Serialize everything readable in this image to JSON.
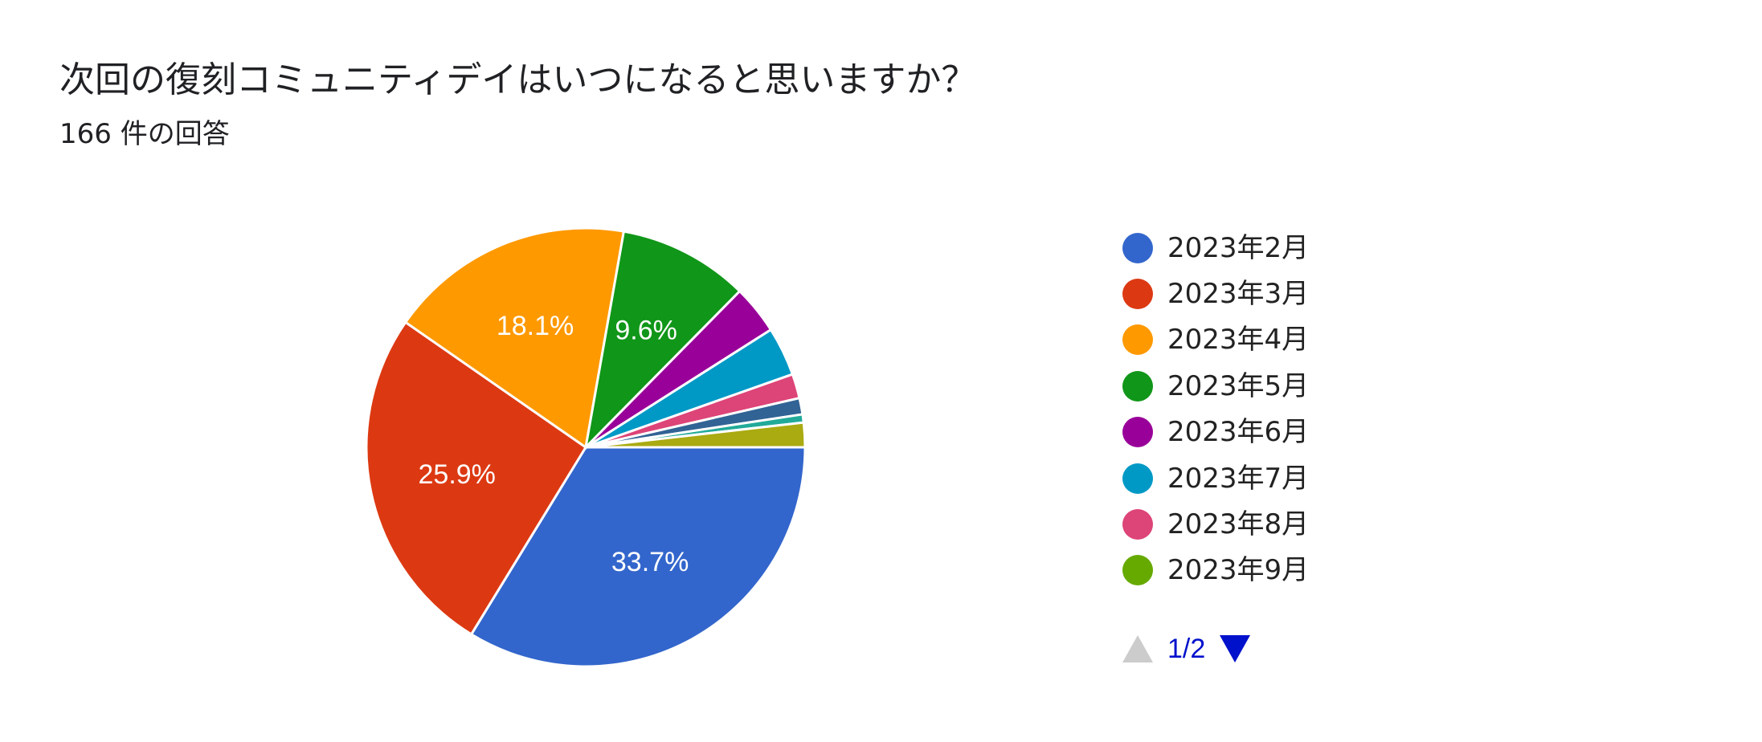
{
  "header": {
    "title": "次回の復刻コミュニティデイはいつになると思いますか？",
    "response_count": "166 件の回答"
  },
  "chart_data": {
    "type": "pie",
    "title": "次回の復刻コミュニティデイはいつになると思いますか？",
    "total_responses": 166,
    "start_angle_deg": 90,
    "direction": "clockwise",
    "slices": [
      {
        "label": "2023年2月",
        "value": 33.7,
        "display": "33.7%",
        "color": "#3366cc"
      },
      {
        "label": "2023年3月",
        "value": 25.9,
        "display": "25.9%",
        "color": "#dc3912"
      },
      {
        "label": "2023年4月",
        "value": 18.1,
        "display": "18.1%",
        "color": "#ff9900"
      },
      {
        "label": "2023年5月",
        "value": 9.6,
        "display": "9.6%",
        "color": "#109618"
      },
      {
        "label": "2023年6月",
        "value": 3.6,
        "display": "",
        "color": "#990099"
      },
      {
        "label": "2023年7月",
        "value": 3.6,
        "display": "",
        "color": "#0099c6"
      },
      {
        "label": "2023年8月",
        "value": 1.8,
        "display": "",
        "color": "#dd4477"
      },
      {
        "label": "",
        "value": 1.2,
        "display": "",
        "color": "#316395"
      },
      {
        "label": "",
        "value": 0.6,
        "display": "",
        "color": "#22aa99"
      },
      {
        "label": "",
        "value": 1.8,
        "display": "",
        "color": "#aaaa11"
      }
    ],
    "legend": [
      {
        "label": "2023年2月",
        "color": "#3366cc"
      },
      {
        "label": "2023年3月",
        "color": "#dc3912"
      },
      {
        "label": "2023年4月",
        "color": "#ff9900"
      },
      {
        "label": "2023年5月",
        "color": "#109618"
      },
      {
        "label": "2023年6月",
        "color": "#990099"
      },
      {
        "label": "2023年7月",
        "color": "#0099c6"
      },
      {
        "label": "2023年8月",
        "color": "#dd4477"
      },
      {
        "label": "2023年9月",
        "color": "#66aa00"
      }
    ],
    "legend_position": "right",
    "legend_page": "1/2"
  }
}
